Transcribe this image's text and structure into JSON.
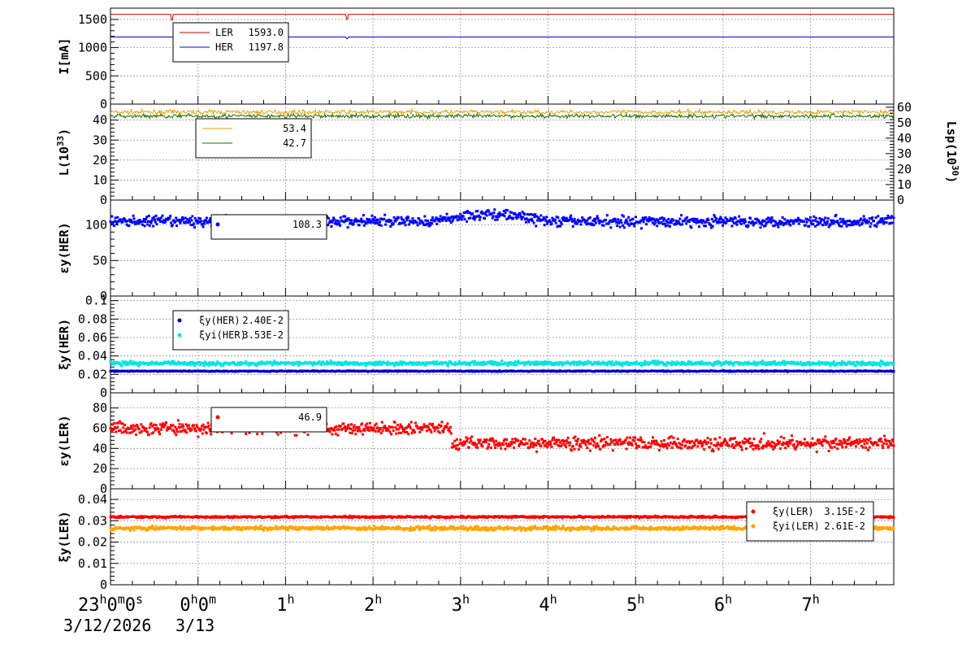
{
  "time_axis": {
    "tick_labels": [
      "23h0m0s",
      "0h0m",
      "1h",
      "2h",
      "3h",
      "4h",
      "5h",
      "6h",
      "7h"
    ],
    "tick_values": [
      0,
      1,
      2,
      3,
      4,
      5,
      6,
      7,
      8
    ],
    "range": [
      0,
      8.95
    ],
    "date_primary": "3/12/2026",
    "date_secondary": "3/13"
  },
  "colors": {
    "ler": "#d40000",
    "her": "#0000cc",
    "lumi": "#e6a000",
    "lumi_spec": "#1e6b00",
    "xi_her_i": "#00e5e5",
    "xi_ler": "#ff0000",
    "xi_ler_i": "#ffa500",
    "eps_her": "#0000ff",
    "eps_ler": "#ff0000"
  },
  "chart_data": [
    {
      "id": "current",
      "type": "line",
      "ylabel": "I[mA]",
      "ylim": [
        0,
        1700
      ],
      "yticks": [
        "0",
        "500",
        "1000",
        "1500"
      ],
      "ytick_values": [
        0,
        500,
        1000,
        1500
      ],
      "grid": true,
      "legend_position": "top-left",
      "legend": [
        {
          "name": "LER",
          "value": "1593.0",
          "color_key": "ler"
        },
        {
          "name": "HER",
          "value": "1197.8",
          "color_key": "her"
        }
      ],
      "series": [
        {
          "name": "LER",
          "color_key": "ler",
          "level": 1590,
          "dips": [
            [
              0.7,
              1490
            ],
            [
              2.7,
              1500
            ]
          ]
        },
        {
          "name": "HER",
          "color_key": "her",
          "level": 1188,
          "dips": [
            [
              2.7,
              1160
            ]
          ]
        }
      ]
    },
    {
      "id": "luminosity",
      "type": "line",
      "ylabel": "L(10^33)",
      "ylim": [
        0,
        48
      ],
      "yticks": [
        "0",
        "10",
        "20",
        "30",
        "40"
      ],
      "ytick_values": [
        0,
        10,
        20,
        30,
        40
      ],
      "right_ylabel": "Lsp(10^30)",
      "right_ylim": [
        0,
        62
      ],
      "right_yticks": [
        "0",
        "10",
        "20",
        "30",
        "40",
        "50",
        "60"
      ],
      "right_ytick_values": [
        0,
        10,
        20,
        30,
        40,
        50,
        60
      ],
      "grid": true,
      "legend_position": "top-left",
      "legend": [
        {
          "name": "",
          "value": "53.4",
          "color_key": "lumi"
        },
        {
          "name": "",
          "value": "42.7",
          "color_key": "lumi_spec"
        }
      ],
      "series": [
        {
          "name": "",
          "color_key": "lumi",
          "level": 44,
          "noise": 1.0
        },
        {
          "name": "",
          "color_key": "lumi_spec",
          "level": 42,
          "noise": 1.0
        }
      ]
    },
    {
      "id": "eps_her",
      "type": "scatter",
      "ylabel": "εy(HER)",
      "ylim": [
        0,
        135
      ],
      "yticks": [
        "0",
        "50",
        "100"
      ],
      "ytick_values": [
        0,
        50,
        100
      ],
      "grid": true,
      "legend_position": "top-left",
      "legend": [
        {
          "name": "",
          "value": "108.3",
          "color_key": "eps_her"
        }
      ],
      "series": [
        {
          "name": "",
          "color_key": "eps_her",
          "level": 105,
          "noise": 7,
          "rise": [
            [
              3.7,
              5.0,
              10
            ]
          ]
        }
      ]
    },
    {
      "id": "xi_her",
      "type": "scatter",
      "ylabel": "ξy(HER)",
      "ylim": [
        0,
        0.105
      ],
      "yticks": [
        "0",
        "0.02",
        "0.04",
        "0.06",
        "0.08",
        "0.1"
      ],
      "ytick_values": [
        0,
        0.02,
        0.04,
        0.06,
        0.08,
        0.1
      ],
      "grid": true,
      "legend_position": "top-left",
      "legend": [
        {
          "name": "ξy(HER)",
          "value": "2.40E-2",
          "color_key": "her"
        },
        {
          "name": "ξyi(HER)",
          "value": "3.53E-2",
          "color_key": "xi_her_i"
        }
      ],
      "series": [
        {
          "name": "ξy(HER)",
          "color_key": "her",
          "level": 0.0235,
          "noise": 0.0005
        },
        {
          "name": "ξyi(HER)",
          "color_key": "xi_her_i",
          "level": 0.032,
          "noise": 0.002
        }
      ]
    },
    {
      "id": "eps_ler",
      "type": "scatter",
      "ylabel": "εy(LER)",
      "ylim": [
        0,
        95
      ],
      "yticks": [
        "0",
        "20",
        "40",
        "60",
        "80"
      ],
      "ytick_values": [
        0,
        20,
        40,
        60,
        80
      ],
      "grid": true,
      "legend_position": "top-left",
      "legend": [
        {
          "name": "",
          "value": "46.9",
          "color_key": "eps_ler"
        }
      ],
      "series": [
        {
          "name": "",
          "color_key": "eps_ler",
          "level": 60,
          "noise": 6,
          "late_level": 45,
          "late_start": 3.9
        }
      ]
    },
    {
      "id": "xi_ler",
      "type": "scatter",
      "ylabel": "ξy(LER)",
      "ylim": [
        0,
        0.045
      ],
      "yticks": [
        "0",
        "0.01",
        "0.02",
        "0.03",
        "0.04"
      ],
      "ytick_values": [
        0,
        0.01,
        0.02,
        0.03,
        0.04
      ],
      "grid": true,
      "legend_position": "top-right",
      "legend": [
        {
          "name": "ξy(LER)",
          "value": "3.15E-2",
          "color_key": "xi_ler"
        },
        {
          "name": "ξyi(LER)",
          "value": "2.61E-2",
          "color_key": "xi_ler_i"
        }
      ],
      "series": [
        {
          "name": "ξy(LER)",
          "color_key": "xi_ler",
          "level": 0.0318,
          "noise": 0.0004
        },
        {
          "name": "ξyi(LER)",
          "color_key": "xi_ler_i",
          "level": 0.0265,
          "noise": 0.0008
        }
      ]
    }
  ]
}
